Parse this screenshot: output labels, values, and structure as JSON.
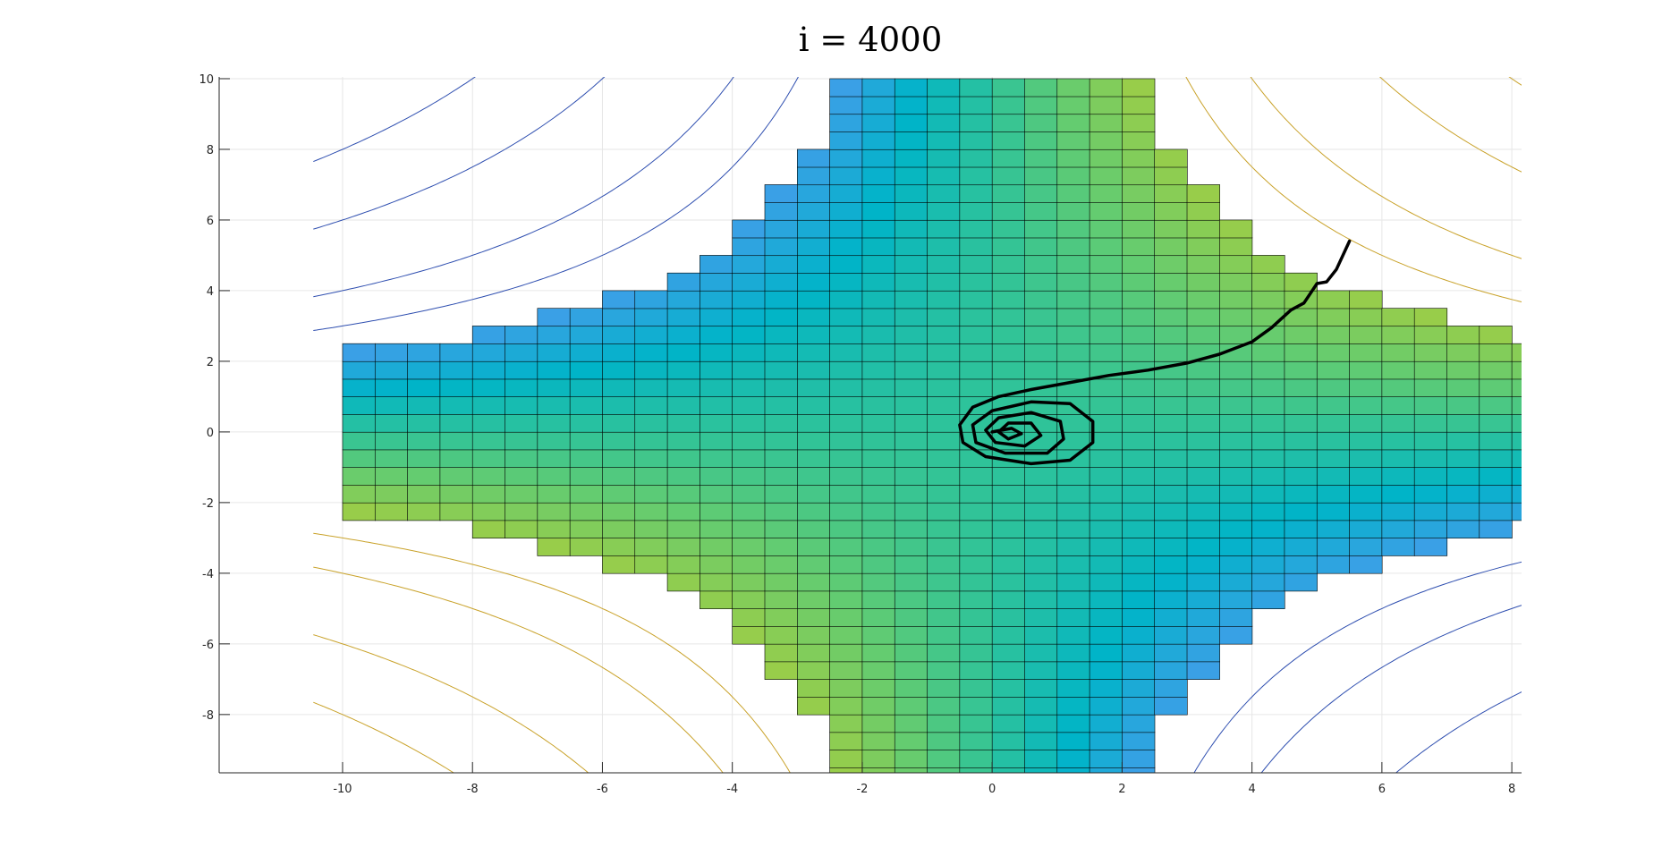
{
  "chart_data": {
    "type": "surface-contour",
    "title": "i = 4000",
    "xlabel": "",
    "ylabel": "",
    "xlim": [
      -11.9,
      8.15
    ],
    "ylim": [
      -9.65,
      10.05
    ],
    "x_ticks": [
      -10,
      -8,
      -6,
      -4,
      -2,
      0,
      2,
      4,
      6,
      8
    ],
    "y_ticks": [
      10,
      8,
      6,
      4,
      2,
      0,
      -2,
      -4,
      -6,
      -8
    ],
    "grid": true,
    "surface": {
      "function": "z = x*y (saddle), clipped to |z| < 22",
      "x_range": [
        -10,
        10
      ],
      "y_range": [
        -10,
        10
      ],
      "mesh_step": 0.5,
      "colormap": [
        "#3aa0e6",
        "#00b4c8",
        "#2ec39a",
        "#64cc70",
        "#98cd4a"
      ]
    },
    "contours": {
      "levels": [
        -80,
        -60,
        -40,
        -30,
        30,
        40,
        60,
        80
      ],
      "negative_color": "#2f4fb0",
      "positive_color": "#c9a22a"
    },
    "trajectory": {
      "color": "#000000",
      "start": [
        5.5,
        5.4
      ],
      "end": [
        0.0,
        0.0
      ],
      "points": [
        [
          5.5,
          5.4
        ],
        [
          5.3,
          4.6
        ],
        [
          5.15,
          4.25
        ],
        [
          5.0,
          4.2
        ],
        [
          4.8,
          3.65
        ],
        [
          4.6,
          3.45
        ],
        [
          4.3,
          2.95
        ],
        [
          4.0,
          2.55
        ],
        [
          3.5,
          2.2
        ],
        [
          3.0,
          1.95
        ],
        [
          2.4,
          1.75
        ],
        [
          1.8,
          1.6
        ],
        [
          1.2,
          1.4
        ],
        [
          0.6,
          1.2
        ],
        [
          0.1,
          1.0
        ],
        [
          -0.3,
          0.7
        ],
        [
          -0.5,
          0.2
        ],
        [
          -0.45,
          -0.3
        ],
        [
          -0.1,
          -0.7
        ],
        [
          0.6,
          -0.9
        ],
        [
          1.2,
          -0.8
        ],
        [
          1.55,
          -0.3
        ],
        [
          1.55,
          0.3
        ],
        [
          1.2,
          0.8
        ],
        [
          0.6,
          0.85
        ],
        [
          0.0,
          0.6
        ],
        [
          -0.3,
          0.2
        ],
        [
          -0.25,
          -0.3
        ],
        [
          0.2,
          -0.6
        ],
        [
          0.85,
          -0.6
        ],
        [
          1.1,
          -0.2
        ],
        [
          1.05,
          0.3
        ],
        [
          0.6,
          0.55
        ],
        [
          0.1,
          0.4
        ],
        [
          -0.1,
          0.05
        ],
        [
          0.05,
          -0.3
        ],
        [
          0.5,
          -0.4
        ],
        [
          0.75,
          -0.1
        ],
        [
          0.6,
          0.25
        ],
        [
          0.25,
          0.25
        ],
        [
          0.1,
          0.0
        ],
        [
          0.25,
          -0.2
        ],
        [
          0.45,
          -0.05
        ],
        [
          0.3,
          0.1
        ],
        [
          0.0,
          0.0
        ]
      ]
    }
  }
}
